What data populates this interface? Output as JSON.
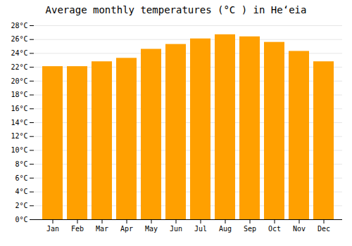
{
  "chart_data": {
    "type": "bar",
    "title": "Average monthly temperatures (°C ) in Heʻeia",
    "categories": [
      "Jan",
      "Feb",
      "Mar",
      "Apr",
      "May",
      "Jun",
      "Jul",
      "Aug",
      "Sep",
      "Oct",
      "Nov",
      "Dec"
    ],
    "values": [
      22.1,
      22.1,
      22.8,
      23.3,
      24.6,
      25.3,
      26.1,
      26.7,
      26.4,
      25.6,
      24.3,
      22.8
    ],
    "color": "#FFA000",
    "ylim": [
      0,
      28
    ],
    "yticks": [
      {
        "value": 0,
        "label": "0°C"
      },
      {
        "value": 2,
        "label": "2°C"
      },
      {
        "value": 4,
        "label": "4°C"
      },
      {
        "value": 6,
        "label": "6°C"
      },
      {
        "value": 8,
        "label": "8°C"
      },
      {
        "value": 10,
        "label": "10°C"
      },
      {
        "value": 12,
        "label": "12°C"
      },
      {
        "value": 14,
        "label": "14°C"
      },
      {
        "value": 16,
        "label": "16°C"
      },
      {
        "value": 18,
        "label": "18°C"
      },
      {
        "value": 20,
        "label": "20°C"
      },
      {
        "value": 22,
        "label": "22°C"
      },
      {
        "value": 24,
        "label": "24°C"
      },
      {
        "value": 26,
        "label": "26°C"
      },
      {
        "value": 28,
        "label": "28°C"
      }
    ],
    "grid": true
  }
}
